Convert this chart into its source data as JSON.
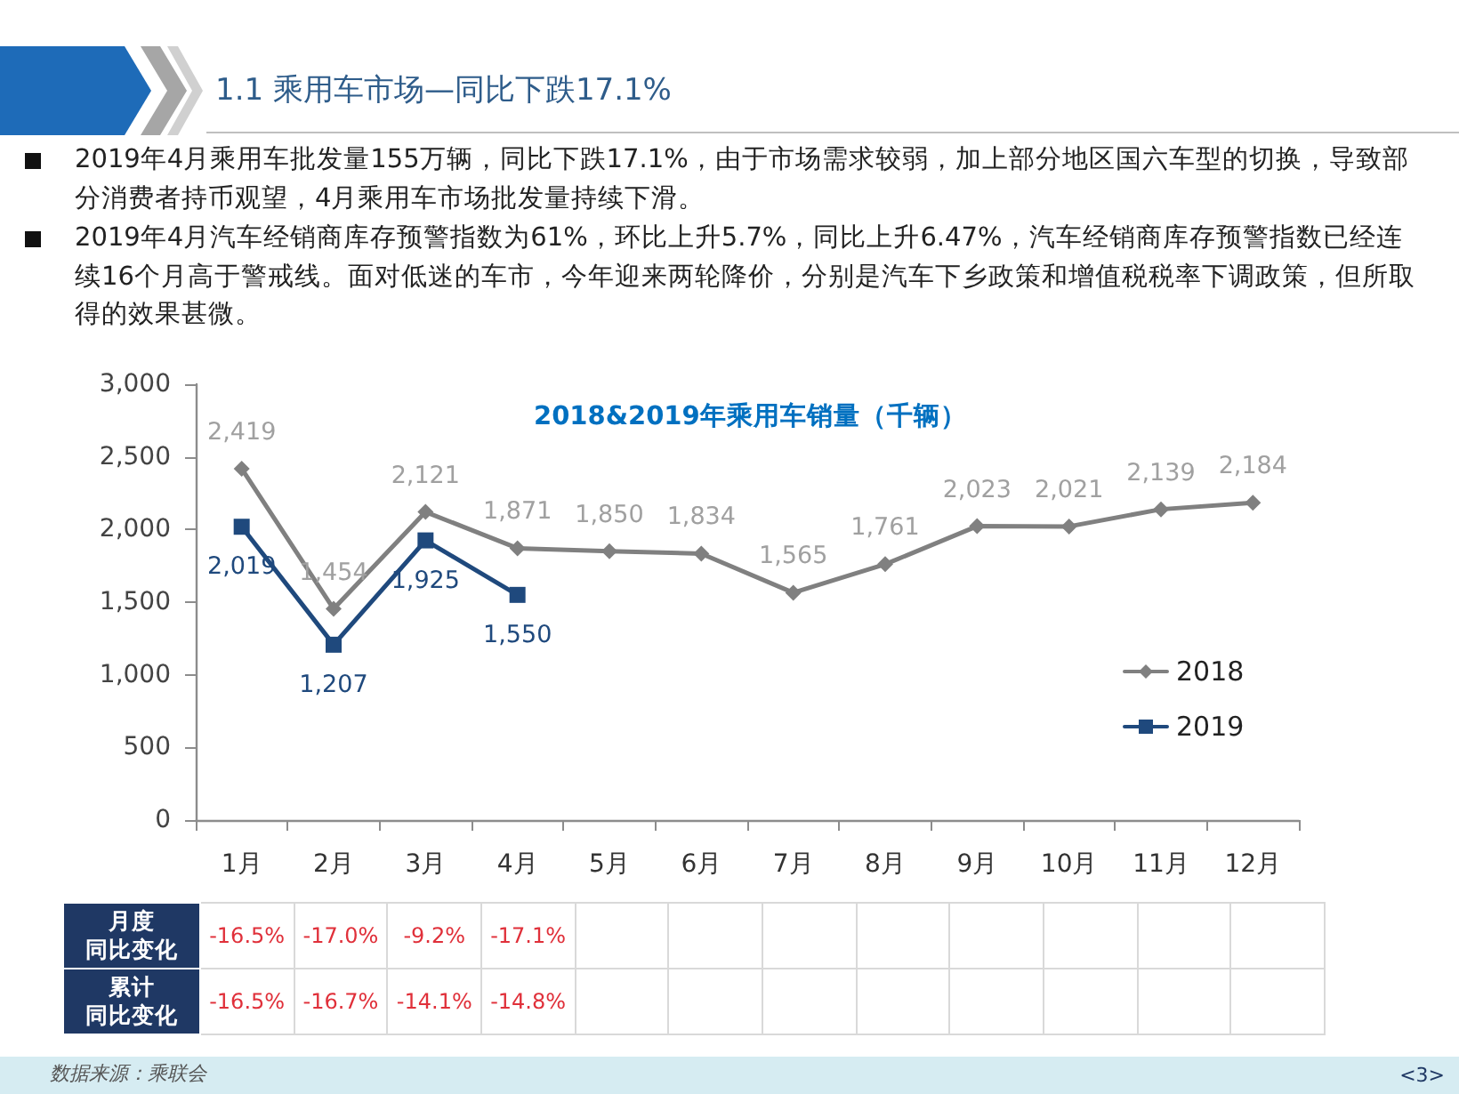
{
  "chart_data": {
    "type": "line",
    "title": "2018&2019年乘用车销量（千辆）",
    "subtitle": "1.1 乘用车市场—同比下跌17.1%",
    "categories": [
      "1月",
      "2月",
      "3月",
      "4月",
      "5月",
      "6月",
      "7月",
      "8月",
      "9月",
      "10月",
      "11月",
      "12月"
    ],
    "series": [
      {
        "name": "2018",
        "color": "#808080",
        "marker": "diamond",
        "values": [
          2419,
          1454,
          2121,
          1871,
          1850,
          1834,
          1565,
          1761,
          2023,
          2021,
          2139,
          2184
        ],
        "value_labels": [
          "2,419",
          "1,454",
          "2,121",
          "1,871",
          "1,850",
          "1,834",
          "1,565",
          "1,761",
          "2,023",
          "2,021",
          "2,139",
          "2,184"
        ]
      },
      {
        "name": "2019",
        "color": "#1f497d",
        "marker": "square",
        "values": [
          2019,
          1207,
          1925,
          1550,
          null,
          null,
          null,
          null,
          null,
          null,
          null,
          null
        ],
        "value_labels": [
          "2,019",
          "1,207",
          "1,925",
          "1,550",
          null,
          null,
          null,
          null,
          null,
          null,
          null,
          null
        ]
      }
    ],
    "ylim": [
      0,
      3000
    ],
    "yticks": [
      0,
      500,
      {
        "value": 1000,
        "label": "1,000"
      },
      {
        "value": 1500,
        "label": "1,500"
      },
      {
        "value": 2000,
        "label": "2,000"
      },
      {
        "value": 2500,
        "label": "2,500"
      },
      {
        "value": 3000,
        "label": "3,000"
      }
    ],
    "legend": "right",
    "annotations": [
      "2019年4月乘用车批发量155万辆，同比下跌17.1%，由于市场需求较弱，加上部分地区国六车型的切换，导致部分消费者持币观望，4月乘用车市场批发量持续下滑。",
      "2019年4月汽车经销商库存预警指数为61%，环比上升5.7%，同比上升6.47%，汽车经销商库存预警指数已经连续16个月高于警戒线。面对低迷的车市，今年迎来两轮降价，分别是汽车下乡政策和增值税税率下调政策，但所取得的效果甚微。",
      "月度同比变化",
      "-16.5%",
      "-17.0%",
      "-9.2%",
      "-17.1%",
      "累计同比变化",
      "-16.5%",
      "-16.7%",
      "-14.1%",
      "-14.8%",
      "数据来源：乘联会",
      "<3>"
    ]
  }
}
